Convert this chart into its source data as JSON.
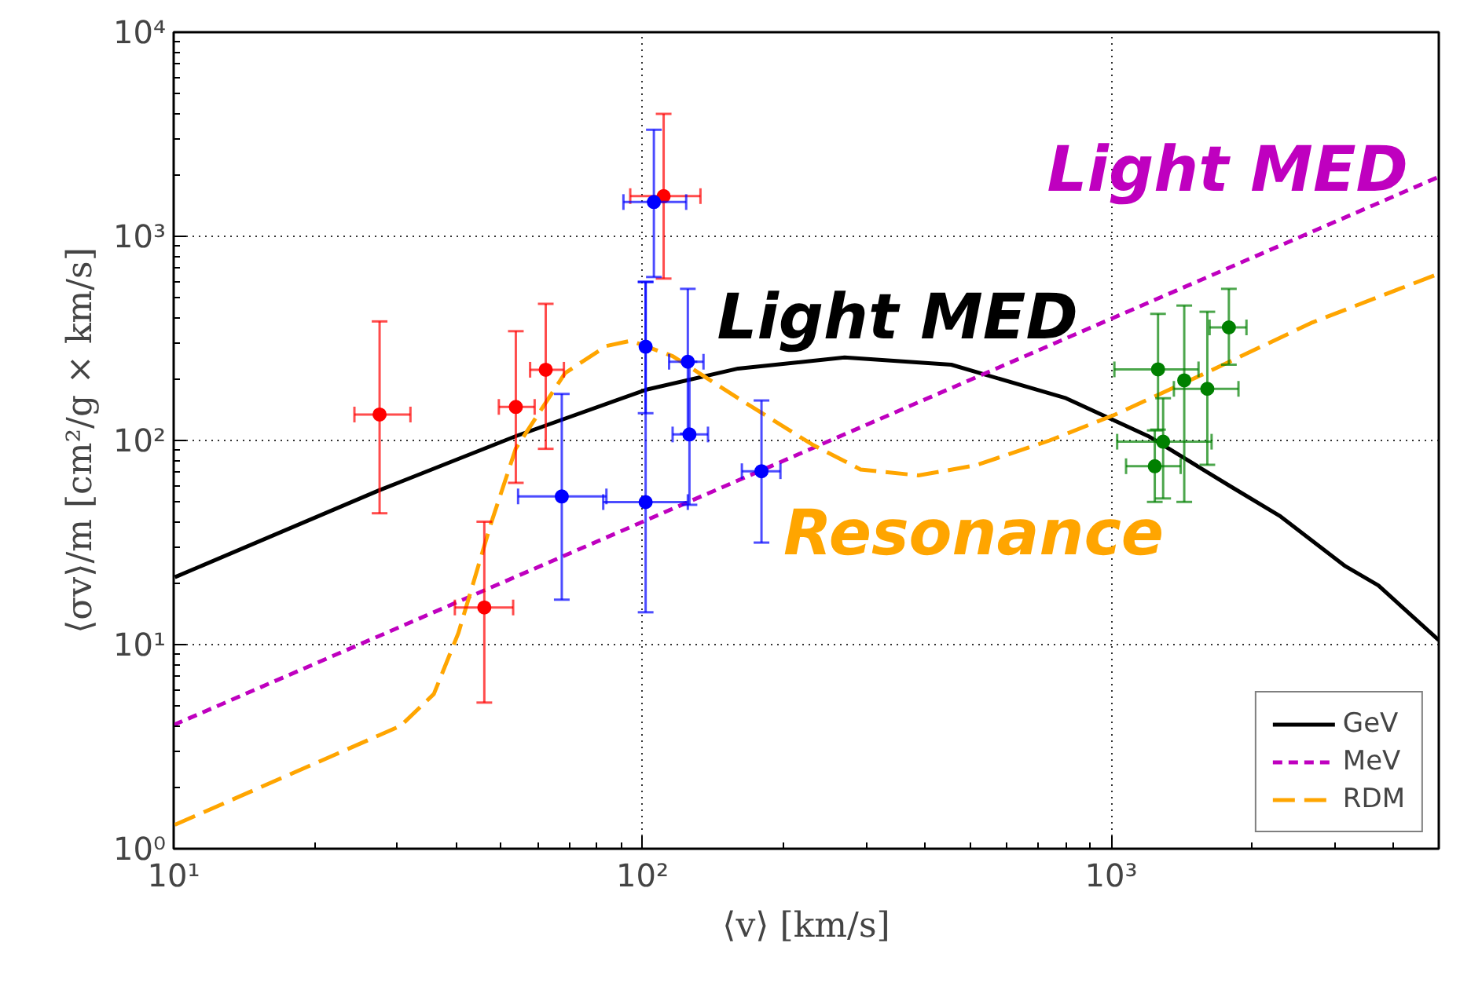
{
  "chart_data": {
    "type": "line",
    "xlabel": "⟨v⟩ [km/s]",
    "ylabel": "⟨σv⟩/m [cm²/g × km/s]",
    "log": "xy",
    "grid": true,
    "legend": "bottom right",
    "xlim": [
      10,
      5000
    ],
    "ylim": [
      1,
      10000
    ],
    "xticks": [
      {
        "value": 10,
        "label": "10¹"
      },
      {
        "value": 100,
        "label": "10²"
      },
      {
        "value": 1000,
        "label": "10³"
      }
    ],
    "yticks": [
      {
        "value": 1,
        "label": "10⁰"
      },
      {
        "value": 10,
        "label": "10¹"
      },
      {
        "value": 100,
        "label": "10²"
      },
      {
        "value": 1000,
        "label": "10³"
      },
      {
        "value": 10000,
        "label": "10⁴"
      }
    ],
    "series": [
      {
        "name": "GeV",
        "color": "#000000",
        "line_style": "solid",
        "x": [
          10.06,
          27.4,
          53.7,
          101.6,
          160,
          270,
          456,
          801,
          1200,
          1795,
          2286,
          3160,
          3716,
          5000
        ],
        "values": [
          21.4,
          56.9,
          105,
          177,
          225,
          255,
          235,
          161,
          105,
          59.7,
          42.8,
          24.2,
          19.5,
          10.5
        ]
      },
      {
        "name": "MeV",
        "color": "#bf00bf",
        "line_style": "dotted",
        "x": [
          10,
          5000
        ],
        "values": [
          4.04,
          1956
        ]
      },
      {
        "name": "RDM",
        "color": "#ffa500",
        "line_style": "dashed",
        "x": [
          10.06,
          30.5,
          35.9,
          40.5,
          47.5,
          53.7,
          68.4,
          83.7,
          94.5,
          116,
          160,
          230,
          292,
          388,
          515,
          739,
          1020,
          1591,
          2690,
          5000
        ],
        "values": [
          1.31,
          4.0,
          5.73,
          11.4,
          39,
          91.5,
          214,
          290,
          308,
          259,
          161,
          95.7,
          72.1,
          67.4,
          75.6,
          100,
          134,
          214,
          379,
          656
        ]
      },
      {
        "type": "scatter",
        "marker": "circle",
        "color": "#ff0000",
        "x": [
          27.5,
          53.7,
          62.2,
          46,
          111
        ],
        "values": [
          134,
          146,
          222,
          15.2,
          1574
        ],
        "errors": [
          [
            44,
            383
          ],
          [
            62,
            343
          ],
          [
            91,
            467
          ],
          [
            5.2,
            40
          ],
          [
            621,
            3980
          ]
        ],
        "xerrors": [
          [
            24.3,
            32
          ],
          [
            49.4,
            58.9
          ],
          [
            57.6,
            68
          ],
          [
            39.8,
            53
          ],
          [
            94.2,
            133
          ]
        ]
      },
      {
        "type": "scatter",
        "marker": "circle",
        "color": "#0000ff",
        "x": [
          105.8,
          101.6,
          125,
          126,
          67.3,
          101.6,
          179.5
        ],
        "values": [
          1472,
          288,
          243,
          107,
          53.2,
          49.9,
          70.7
        ],
        "errors": [
          [
            632,
            3327
          ],
          [
            136,
            598
          ],
          [
            108,
            553
          ],
          [
            48.4,
            243
          ],
          [
            16.6,
            169
          ],
          [
            14.4,
            598
          ],
          [
            31.6,
            157
          ]
        ],
        "xerrors": [
          [
            91.1,
            124
          ],
          null,
          [
            114,
            135
          ],
          [
            116,
            138
          ],
          [
            54.3,
            83.8
          ],
          [
            82.5,
            125
          ],
          [
            163,
            197
          ]
        ]
      },
      {
        "type": "scatter",
        "marker": "circle",
        "color": "#008000",
        "x": [
          1259,
          1432,
          1604,
          1783,
          1291,
          1239
        ],
        "values": [
          223,
          197,
          179,
          358,
          98.6,
          74.8
        ],
        "errors": [
          [
            113,
            417
          ],
          [
            50,
            458
          ],
          [
            76,
            427
          ],
          [
            235,
            553
          ],
          [
            52,
            161
          ],
          [
            50,
            112
          ]
        ],
        "xerrors": [
          [
            1016,
            1536
          ],
          null,
          [
            1361,
            1869
          ],
          [
            1622,
            1944
          ],
          [
            1030,
            1638
          ],
          [
            1076,
            1407
          ]
        ]
      }
    ],
    "annotations": [
      "Light MED",
      "Light MED",
      "Resonance"
    ]
  }
}
